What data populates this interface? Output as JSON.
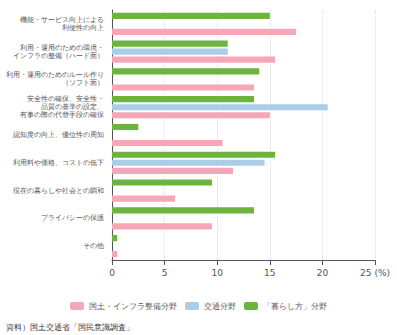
{
  "chart_data": {
    "type": "bar",
    "orientation": "horizontal",
    "categories": [
      "その他",
      "プライバシーの保護",
      "現在の暮らしや社会との調和",
      "利用料や価格、コストの低下",
      "認知度の向上、優位性の周知",
      "安全性の確保、安全性・\n品質の基準の設定、\n有事の際の代替手段の確保",
      "利用・運用のためのルール作り\n（ソフト面）",
      "利用・運用のための環境・\nインフラの整備（ハード面）",
      "機能・サービス向上による\n利便性の向上"
    ],
    "series": [
      {
        "name": "国土・インフラ整備分野",
        "color": "#f5a7b8",
        "values": [
          0.5,
          9.5,
          6.0,
          11.5,
          10.5,
          15.0,
          13.5,
          15.5,
          17.5
        ]
      },
      {
        "name": "交通分野",
        "color": "#aacde8",
        "values": [
          0.0,
          0.0,
          0.0,
          14.5,
          0.0,
          20.5,
          0.0,
          11.0,
          0.0
        ]
      },
      {
        "name": "「暮らし方」分野",
        "color": "#6db33f",
        "values": [
          0.5,
          13.5,
          9.5,
          15.5,
          2.5,
          13.5,
          14.0,
          11.0,
          15.0
        ]
      }
    ],
    "xlim": [
      0,
      25
    ],
    "xticks": [
      0,
      5,
      10,
      15,
      20,
      {
        "value": 25,
        "label": "25 (%)"
      }
    ],
    "grid": true,
    "legend": "bottom",
    "annotations": [
      "資料）国土交通省「国民意識調査」"
    ]
  }
}
